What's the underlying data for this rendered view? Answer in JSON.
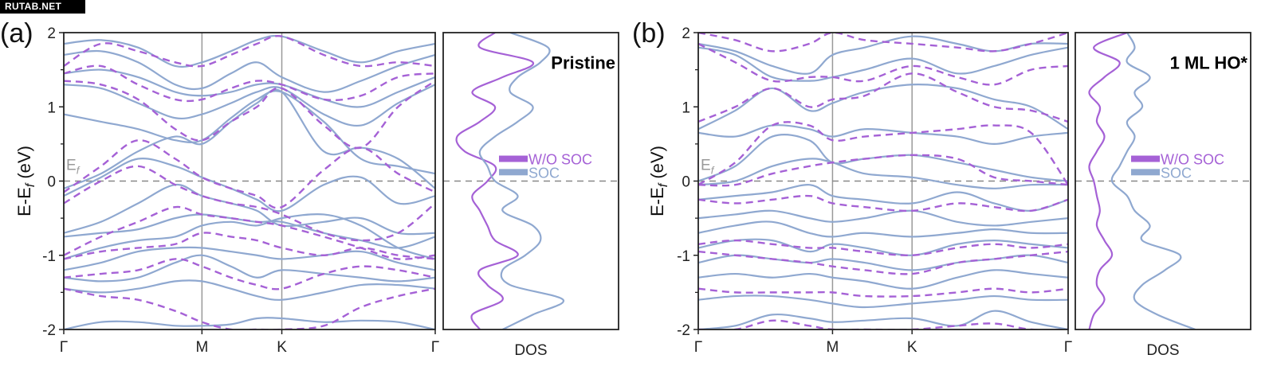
{
  "watermark": "RUTAB.NET",
  "colors": {
    "wo_soc": "#A561D6",
    "soc": "#8FA8D0",
    "axis": "#222222",
    "fermi": "#888888",
    "kline": "#999999"
  },
  "chart_data": [
    {
      "panel_label": "(a)",
      "type": "line",
      "title": "Pristine",
      "ylabel": "E-E_f (eV)",
      "ylim": [
        -2,
        2
      ],
      "yticks": [
        -2,
        -1,
        0,
        1,
        2
      ],
      "ytick_labels": [
        "-2",
        "-1",
        "0",
        "1",
        "2"
      ],
      "xticks": [
        "Γ",
        "M",
        "K",
        "Γ"
      ],
      "kpoints": [
        0,
        0.372,
        0.587,
        1.0
      ],
      "fermi_label": "E_f",
      "fermi_level": 0,
      "legend": [
        {
          "name": "W/O SOC",
          "style": "dashed-in-bands / solid-in-dos"
        },
        {
          "name": "SOC",
          "style": "solid"
        }
      ],
      "legend_position": "right-middle",
      "dos_xlabel": "DOS",
      "bands": {
        "x": [
          0,
          0.1,
          0.2,
          0.3,
          0.372,
          0.45,
          0.52,
          0.587,
          0.7,
          0.8,
          0.9,
          1.0
        ],
        "soc": [
          [
            1.85,
            1.9,
            1.8,
            1.55,
            1.6,
            1.75,
            1.9,
            1.95,
            1.75,
            1.6,
            1.75,
            1.85
          ],
          [
            1.7,
            1.75,
            1.6,
            1.3,
            1.25,
            1.45,
            1.6,
            1.4,
            1.2,
            1.35,
            1.55,
            1.7
          ],
          [
            1.45,
            1.5,
            1.4,
            1.2,
            1.15,
            1.2,
            1.3,
            1.3,
            1.1,
            1.0,
            1.2,
            1.4
          ],
          [
            1.3,
            1.25,
            1.05,
            0.85,
            0.9,
            1.05,
            1.2,
            1.25,
            0.9,
            0.75,
            1.05,
            1.3
          ],
          [
            0.9,
            0.8,
            0.7,
            0.55,
            0.55,
            0.85,
            1.1,
            1.2,
            0.8,
            0.3,
            0.2,
            0.1
          ],
          [
            -0.1,
            0.1,
            0.4,
            0.6,
            0.5,
            0.8,
            1.05,
            1.2,
            0.4,
            0.45,
            0.3,
            -0.1
          ],
          [
            -0.2,
            0.05,
            0.3,
            0.2,
            0.05,
            -0.1,
            -0.25,
            -0.4,
            -0.05,
            0.05,
            -0.3,
            -0.2
          ],
          [
            -0.7,
            -0.55,
            -0.3,
            -0.05,
            -0.2,
            -0.3,
            -0.4,
            -0.6,
            -0.55,
            -0.5,
            -0.7,
            -0.7
          ],
          [
            -0.75,
            -0.7,
            -0.65,
            -0.5,
            -0.45,
            -0.5,
            -0.55,
            -0.55,
            -0.7,
            -0.8,
            -0.9,
            -0.75
          ],
          [
            -1.05,
            -0.9,
            -0.8,
            -0.75,
            -0.6,
            -0.55,
            -0.6,
            -0.5,
            -0.45,
            -0.6,
            -0.9,
            -1.05
          ],
          [
            -1.2,
            -1.1,
            -0.95,
            -0.9,
            -0.9,
            -0.95,
            -1.0,
            -1.05,
            -1.0,
            -0.95,
            -1.1,
            -1.2
          ],
          [
            -1.3,
            -1.35,
            -1.3,
            -1.1,
            -1.0,
            -1.15,
            -1.3,
            -1.2,
            -1.25,
            -1.3,
            -1.35,
            -1.3
          ],
          [
            -1.45,
            -1.5,
            -1.45,
            -1.35,
            -1.35,
            -1.45,
            -1.55,
            -1.6,
            -1.5,
            -1.4,
            -1.4,
            -1.45
          ],
          [
            -2.0,
            -1.9,
            -1.9,
            -1.95,
            -1.95,
            -1.93,
            -1.85,
            -1.85,
            -1.9,
            -1.88,
            -1.9,
            -2.0
          ]
        ],
        "wo_soc": [
          [
            1.55,
            1.85,
            1.75,
            1.6,
            1.55,
            1.7,
            1.85,
            1.95,
            1.7,
            1.55,
            1.6,
            1.55
          ],
          [
            1.45,
            1.55,
            1.3,
            1.1,
            1.1,
            1.25,
            1.35,
            1.3,
            1.1,
            1.15,
            1.4,
            1.45
          ],
          [
            1.35,
            1.3,
            1.1,
            0.7,
            0.55,
            0.8,
            1.0,
            1.25,
            0.75,
            0.45,
            1.0,
            1.35
          ],
          [
            -0.15,
            0.2,
            0.55,
            0.3,
            0.05,
            -0.1,
            -0.2,
            -0.35,
            0.15,
            0.45,
            0.1,
            -0.15
          ],
          [
            -0.3,
            0.0,
            0.2,
            -0.05,
            -0.2,
            -0.3,
            -0.35,
            -0.45,
            -0.7,
            -0.8,
            -0.7,
            -0.3
          ],
          [
            -1.0,
            -0.75,
            -0.55,
            -0.35,
            -0.45,
            -0.5,
            -0.55,
            -0.6,
            -0.75,
            -0.9,
            -1.05,
            -1.0
          ],
          [
            -1.05,
            -0.95,
            -0.9,
            -0.85,
            -0.7,
            -0.75,
            -0.8,
            -0.9,
            -1.0,
            -0.9,
            -1.0,
            -1.05
          ],
          [
            -1.3,
            -1.25,
            -1.2,
            -1.05,
            -1.15,
            -1.3,
            -1.4,
            -1.45,
            -1.25,
            -1.15,
            -1.2,
            -1.3
          ],
          [
            -1.45,
            -1.55,
            -1.6,
            -1.75,
            -1.9,
            -2.0,
            -2.0,
            -2.0,
            -1.95,
            -1.7,
            -1.55,
            -1.45
          ]
        ]
      },
      "dos": {
        "energy": [
          -2.0,
          -1.8,
          -1.6,
          -1.4,
          -1.2,
          -1.0,
          -0.8,
          -0.6,
          -0.4,
          -0.2,
          0.0,
          0.2,
          0.4,
          0.6,
          0.8,
          1.0,
          1.2,
          1.4,
          1.6,
          1.8,
          2.0
        ],
        "wo_soc": [
          0.2,
          0.15,
          0.35,
          0.25,
          0.2,
          0.45,
          0.3,
          0.25,
          0.2,
          0.15,
          0.25,
          0.3,
          0.1,
          0.05,
          0.2,
          0.3,
          0.15,
          0.35,
          0.55,
          0.2,
          0.3
        ],
        "soc": [
          0.35,
          0.55,
          0.75,
          0.4,
          0.35,
          0.5,
          0.6,
          0.55,
          0.35,
          0.45,
          0.3,
          0.25,
          0.2,
          0.3,
          0.45,
          0.55,
          0.4,
          0.45,
          0.6,
          0.65,
          0.4
        ]
      }
    },
    {
      "panel_label": "(b)",
      "type": "line",
      "title": "1 ML HO*",
      "ylabel": "E-E_f (eV)",
      "ylim": [
        -2,
        2
      ],
      "yticks": [
        -2,
        -1,
        0,
        1,
        2
      ],
      "ytick_labels": [
        "-2",
        "-1",
        "0",
        "1",
        "2"
      ],
      "xticks": [
        "Γ",
        "M",
        "K",
        "Γ"
      ],
      "kpoints": [
        0,
        0.363,
        0.578,
        1.0
      ],
      "fermi_label": "E_f",
      "fermi_level": 0,
      "legend": [
        {
          "name": "W/O SOC",
          "style": "dashed-in-bands / solid-in-dos"
        },
        {
          "name": "SOC",
          "style": "solid"
        }
      ],
      "legend_position": "right-middle",
      "dos_xlabel": "DOS",
      "bands": {
        "x": [
          0,
          0.1,
          0.2,
          0.3,
          0.363,
          0.45,
          0.578,
          0.7,
          0.8,
          0.9,
          1.0
        ],
        "soc": [
          [
            1.85,
            1.75,
            1.55,
            1.45,
            1.7,
            1.8,
            1.95,
            1.85,
            1.75,
            1.85,
            1.85
          ],
          [
            1.8,
            1.7,
            1.4,
            1.35,
            1.4,
            1.5,
            1.65,
            1.45,
            1.55,
            1.7,
            1.8
          ],
          [
            0.7,
            0.95,
            1.25,
            0.95,
            1.05,
            1.2,
            1.3,
            1.25,
            1.1,
            1.0,
            0.7
          ],
          [
            0.65,
            0.6,
            0.75,
            0.7,
            0.6,
            0.7,
            0.65,
            0.6,
            0.5,
            0.6,
            0.65
          ],
          [
            0.0,
            0.2,
            0.6,
            0.55,
            0.25,
            0.3,
            0.35,
            0.25,
            0.15,
            0.05,
            0.0
          ],
          [
            -0.05,
            0.0,
            0.2,
            0.3,
            0.25,
            0.1,
            0.05,
            -0.05,
            -0.1,
            -0.05,
            -0.05
          ],
          [
            -0.25,
            -0.2,
            -0.15,
            -0.05,
            -0.2,
            -0.25,
            -0.3,
            -0.15,
            -0.3,
            -0.4,
            -0.25
          ],
          [
            -0.5,
            -0.45,
            -0.4,
            -0.5,
            -0.55,
            -0.5,
            -0.4,
            -0.55,
            -0.6,
            -0.55,
            -0.5
          ],
          [
            -0.7,
            -0.6,
            -0.55,
            -0.7,
            -0.75,
            -0.7,
            -0.75,
            -0.7,
            -0.65,
            -0.7,
            -0.7
          ],
          [
            -0.9,
            -0.8,
            -0.8,
            -0.95,
            -0.85,
            -0.9,
            -1.0,
            -0.85,
            -0.8,
            -0.85,
            -0.9
          ],
          [
            -1.1,
            -1.0,
            -1.05,
            -1.1,
            -1.05,
            -1.1,
            -1.2,
            -1.1,
            -1.05,
            -1.0,
            -1.1
          ],
          [
            -1.3,
            -1.25,
            -1.3,
            -1.25,
            -1.3,
            -1.35,
            -1.45,
            -1.3,
            -1.2,
            -1.25,
            -1.3
          ],
          [
            -1.6,
            -1.55,
            -1.55,
            -1.6,
            -1.65,
            -1.7,
            -1.65,
            -1.6,
            -1.55,
            -1.6,
            -1.6
          ],
          [
            -2.0,
            -1.95,
            -1.8,
            -1.85,
            -1.9,
            -1.88,
            -1.85,
            -1.95,
            -1.75,
            -1.9,
            -2.0
          ]
        ],
        "wo_soc": [
          [
            2.0,
            1.9,
            1.75,
            1.85,
            2.0,
            1.9,
            1.85,
            1.8,
            1.75,
            1.85,
            2.0
          ],
          [
            1.85,
            1.6,
            1.35,
            1.4,
            1.4,
            1.35,
            1.55,
            1.4,
            1.3,
            1.5,
            1.55
          ],
          [
            0.8,
            1.0,
            1.25,
            1.0,
            1.1,
            1.15,
            1.45,
            1.2,
            1.0,
            0.95,
            0.8
          ],
          [
            -0.05,
            0.25,
            0.75,
            0.75,
            0.55,
            0.6,
            0.65,
            0.7,
            0.75,
            0.65,
            -0.05
          ],
          [
            -0.05,
            -0.05,
            0.1,
            0.2,
            0.25,
            0.3,
            0.35,
            0.3,
            0.05,
            0.0,
            -0.05
          ],
          [
            -0.25,
            -0.3,
            -0.25,
            -0.2,
            -0.3,
            -0.35,
            -0.4,
            -0.3,
            -0.35,
            -0.4,
            -0.25
          ],
          [
            -0.85,
            -0.8,
            -0.85,
            -0.9,
            -0.9,
            -0.95,
            -1.0,
            -0.9,
            -0.85,
            -0.9,
            -0.85
          ],
          [
            -0.95,
            -1.0,
            -1.05,
            -1.1,
            -1.15,
            -1.2,
            -1.25,
            -1.1,
            -1.05,
            -1.0,
            -0.95
          ],
          [
            -1.45,
            -1.5,
            -1.5,
            -1.5,
            -1.5,
            -1.55,
            -1.55,
            -1.5,
            -1.45,
            -1.5,
            -1.45
          ],
          [
            -2.0,
            -2.0,
            -1.88,
            -1.95,
            -2.0,
            -2.0,
            -2.0,
            -1.95,
            -1.92,
            -2.0,
            -2.0
          ]
        ]
      },
      "dos": {
        "energy": [
          -2.0,
          -1.8,
          -1.6,
          -1.4,
          -1.2,
          -1.0,
          -0.8,
          -0.6,
          -0.4,
          -0.2,
          0.0,
          0.2,
          0.4,
          0.6,
          0.8,
          1.0,
          1.2,
          1.4,
          1.6,
          1.8,
          2.0
        ],
        "wo_soc": [
          0.05,
          0.08,
          0.15,
          0.1,
          0.12,
          0.2,
          0.15,
          0.1,
          0.12,
          0.1,
          0.08,
          0.05,
          0.1,
          0.15,
          0.1,
          0.12,
          0.05,
          0.15,
          0.25,
          0.08,
          0.3
        ],
        "soc": [
          0.75,
          0.5,
          0.35,
          0.4,
          0.55,
          0.65,
          0.4,
          0.45,
          0.35,
          0.3,
          0.2,
          0.25,
          0.3,
          0.35,
          0.3,
          0.4,
          0.35,
          0.45,
          0.3,
          0.35,
          0.3
        ]
      }
    }
  ]
}
